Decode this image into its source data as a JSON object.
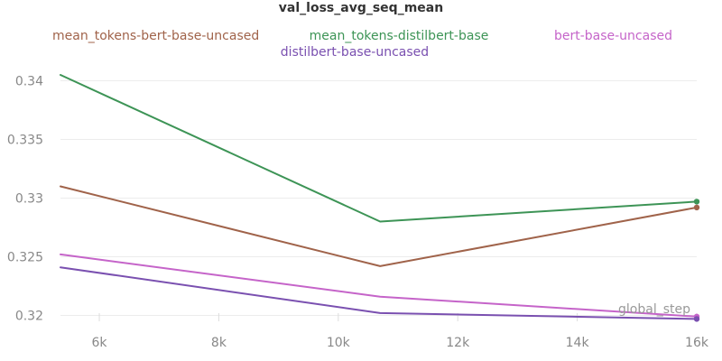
{
  "chart_data": {
    "type": "line",
    "title": "val_loss_avg_seq_mean",
    "xlabel": "global_step",
    "ylabel": "",
    "xlim": [
      5350,
      16000
    ],
    "ylim": [
      0.3195,
      0.3415
    ],
    "x_ticks": [
      6000,
      8000,
      10000,
      12000,
      14000,
      16000
    ],
    "x_tick_labels": [
      "6k",
      "8k",
      "10k",
      "12k",
      "14k",
      "16k"
    ],
    "y_ticks": [
      0.32,
      0.325,
      0.33,
      0.335,
      0.34
    ],
    "y_tick_labels": [
      "0.32",
      "0.325",
      "0.33",
      "0.335",
      "0.34"
    ],
    "grid": true,
    "legend_position": "top",
    "series": [
      {
        "name": "mean_tokens-bert-base-uncased",
        "color": "#a0634a",
        "x": [
          5350,
          10700,
          16000
        ],
        "y": [
          0.331,
          0.3242,
          0.3292
        ]
      },
      {
        "name": "mean_tokens-distilbert-base",
        "color": "#3d9456",
        "x": [
          5350,
          10700,
          16000
        ],
        "y": [
          0.3405,
          0.328,
          0.3297
        ]
      },
      {
        "name": "bert-base-uncased",
        "color": "#c564c9",
        "x": [
          5350,
          10700,
          16000
        ],
        "y": [
          0.3252,
          0.3216,
          0.3199
        ]
      },
      {
        "name": "distilbert-base-uncased",
        "color": "#7a50b0",
        "x": [
          5350,
          10700,
          16000
        ],
        "y": [
          0.3241,
          0.3202,
          0.3197
        ]
      }
    ]
  }
}
